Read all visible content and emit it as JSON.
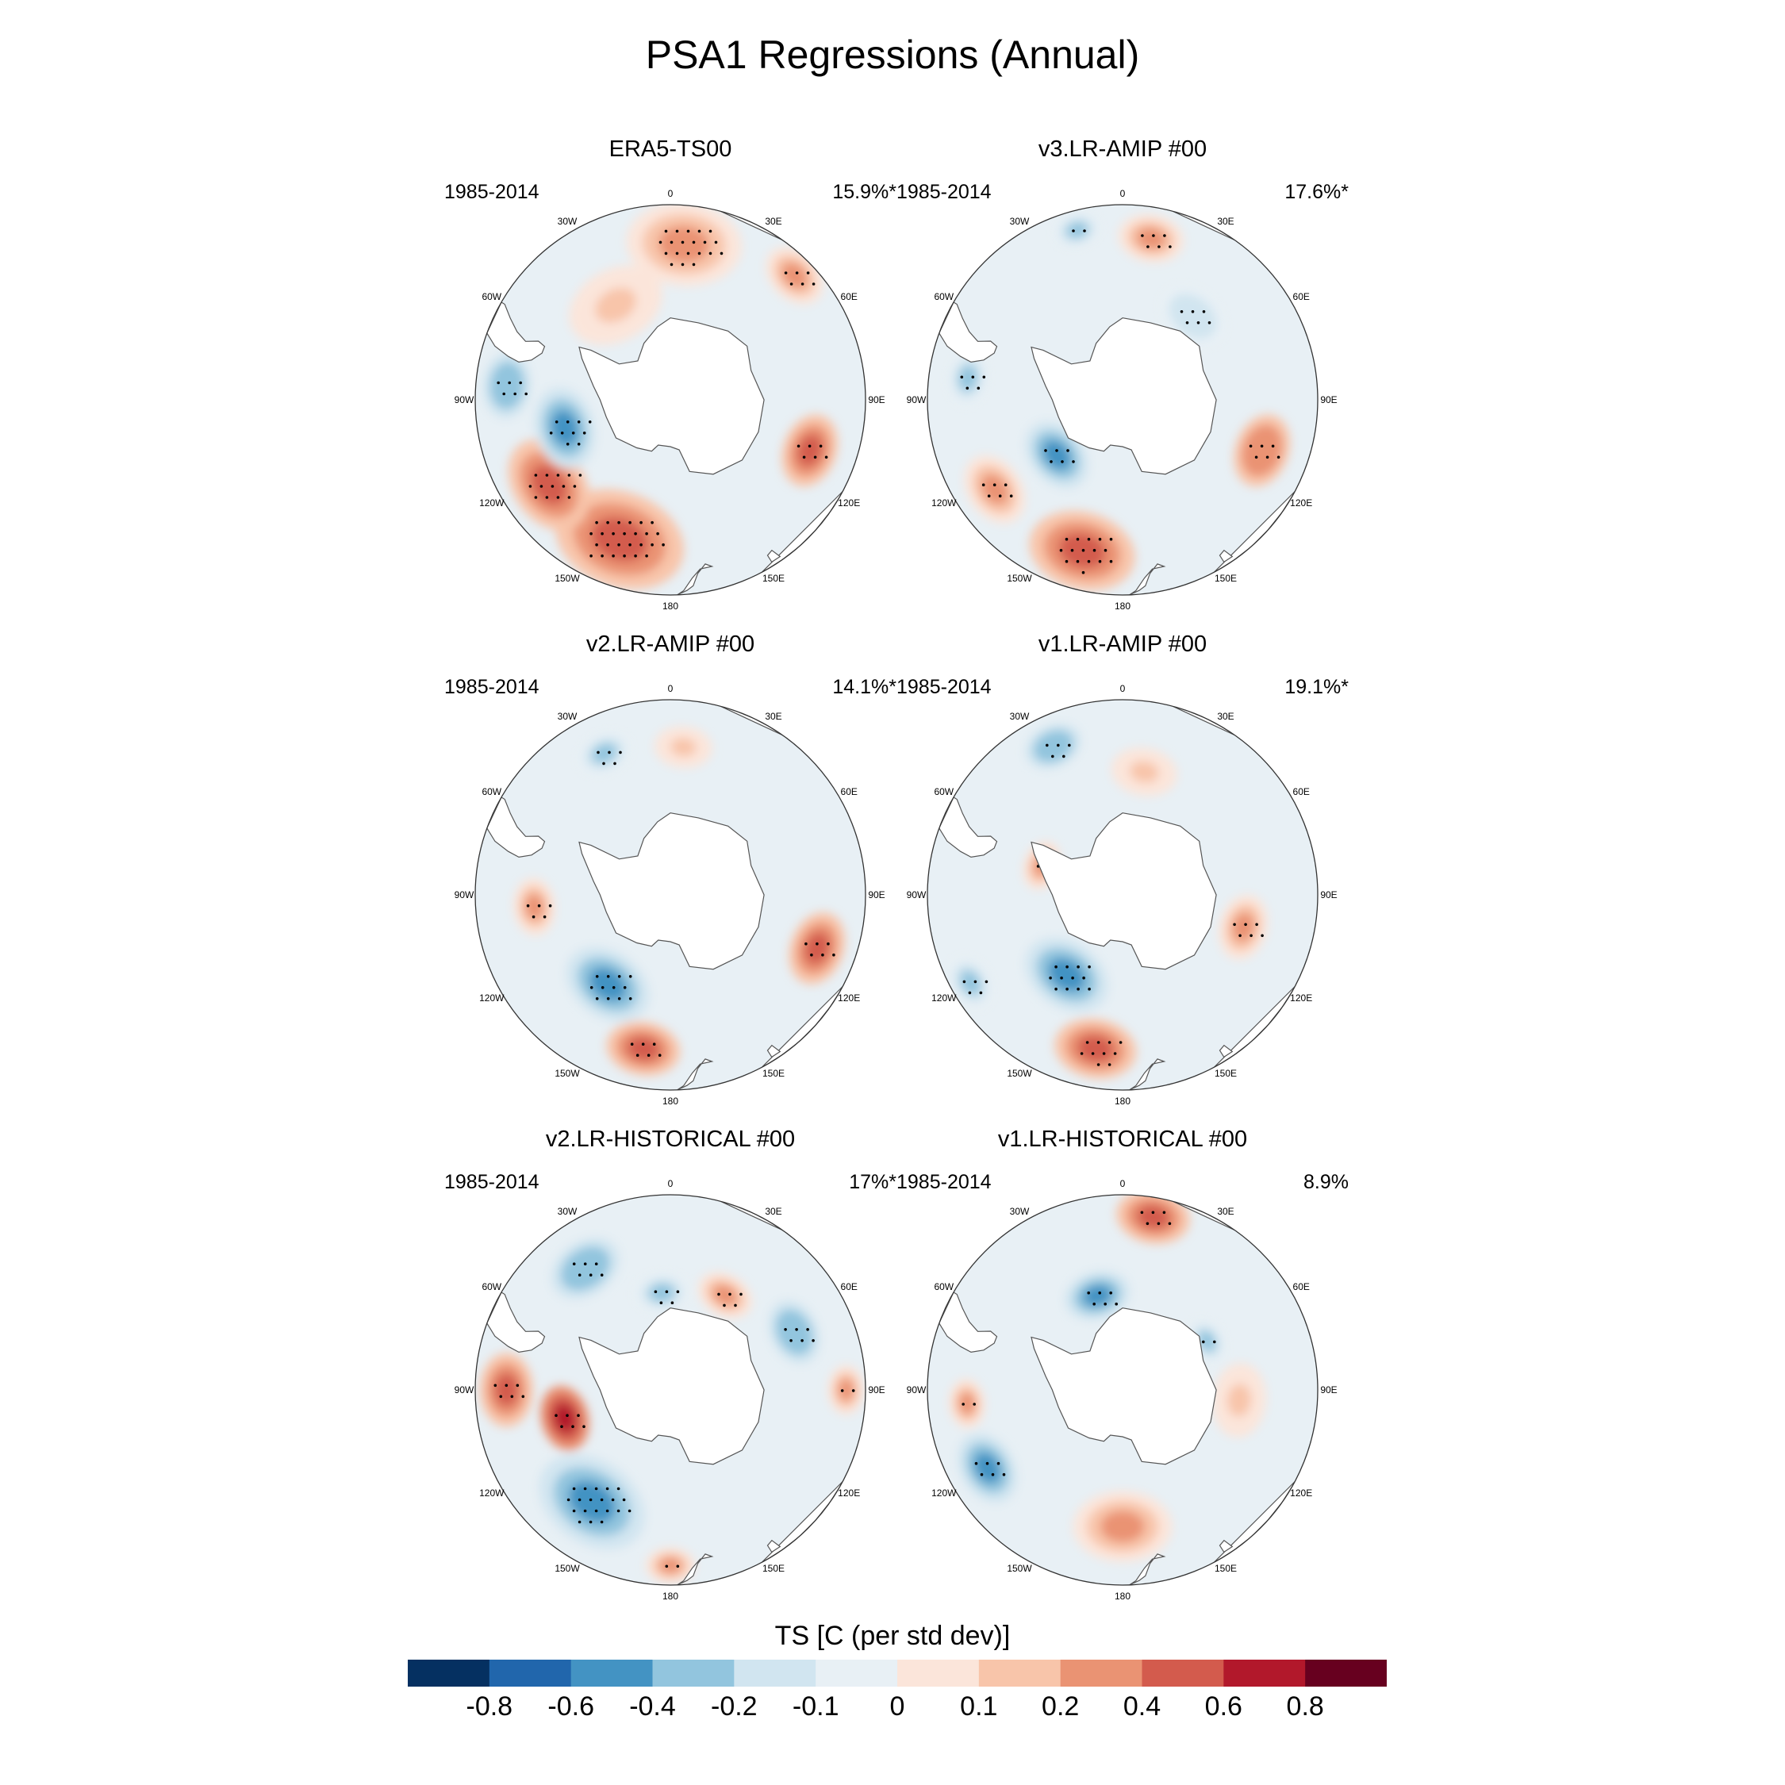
{
  "figure_title": "PSA1 Regressions (Annual)",
  "chart_data": {
    "type": "heatmap",
    "projection": "south-polar-stereographic",
    "variable_label": "TS [C (per std dev)]",
    "longitude_labels": [
      "0",
      "30E",
      "60E",
      "90E",
      "120E",
      "150E",
      "180",
      "150W",
      "120W",
      "90W",
      "60W",
      "30W"
    ],
    "colorbar": {
      "ticks": [
        "-0.8",
        "-0.6",
        "-0.4",
        "-0.2",
        "-0.1",
        "0",
        "0.1",
        "0.2",
        "0.4",
        "0.6",
        "0.8"
      ],
      "levels": [
        -0.8,
        -0.6,
        -0.4,
        -0.2,
        -0.1,
        0,
        0.1,
        0.2,
        0.4,
        0.6,
        0.8
      ],
      "colors": [
        "#053061",
        "#2166ac",
        "#4393c3",
        "#92c5de",
        "#d1e5f0",
        "#e8f0f5",
        "#fbe5da",
        "#f8c5aa",
        "#ea9373",
        "#d35b4d",
        "#b2182b",
        "#67001f"
      ]
    },
    "panels": [
      {
        "title": "ERA5-TS00",
        "period": "1985-2014",
        "variance": "15.9%*",
        "anomalies": [
          {
            "lon": 200,
            "lat": -52,
            "value": 0.45,
            "spread": 16,
            "significant": true
          },
          {
            "lon": 235,
            "lat": -52,
            "value": 0.4,
            "spread": 12,
            "significant": true
          },
          {
            "lon": 255,
            "lat": -62,
            "value": -0.45,
            "spread": 10,
            "significant": true
          },
          {
            "lon": 275,
            "lat": -48,
            "value": -0.35,
            "spread": 8,
            "significant": true
          },
          {
            "lon": 110,
            "lat": -52,
            "value": 0.4,
            "spread": 9,
            "significant": true
          },
          {
            "lon": 5,
            "lat": -50,
            "value": 0.22,
            "spread": 14,
            "significant": true
          },
          {
            "lon": 45,
            "lat": -45,
            "value": 0.2,
            "spread": 8,
            "significant": true
          },
          {
            "lon": 330,
            "lat": -62,
            "value": 0.15,
            "spread": 12,
            "significant": false
          }
        ]
      },
      {
        "title": "v3.LR-AMIP  #00",
        "period": "1985-2014",
        "variance": "17.6%*",
        "anomalies": [
          {
            "lon": 230,
            "lat": -68,
            "value": -0.5,
            "spread": 9,
            "significant": true
          },
          {
            "lon": 195,
            "lat": -50,
            "value": 0.45,
            "spread": 13,
            "significant": true
          },
          {
            "lon": 235,
            "lat": -50,
            "value": 0.3,
            "spread": 9,
            "significant": true
          },
          {
            "lon": 278,
            "lat": -50,
            "value": -0.3,
            "spread": 7,
            "significant": true
          },
          {
            "lon": 110,
            "lat": -52,
            "value": 0.38,
            "spread": 9,
            "significant": true
          },
          {
            "lon": 40,
            "lat": -62,
            "value": -0.2,
            "spread": 9,
            "significant": true
          },
          {
            "lon": 345,
            "lat": -45,
            "value": -0.3,
            "spread": 6,
            "significant": true
          },
          {
            "lon": 10,
            "lat": -48,
            "value": 0.2,
            "spread": 8,
            "significant": true
          }
        ]
      },
      {
        "title": "v2.LR-AMIP  #00",
        "period": "1985-2014",
        "variance": "14.1%*",
        "anomalies": [
          {
            "lon": 215,
            "lat": -62,
            "value": -0.5,
            "spread": 11,
            "significant": true
          },
          {
            "lon": 190,
            "lat": -50,
            "value": 0.42,
            "spread": 9,
            "significant": true
          },
          {
            "lon": 110,
            "lat": -50,
            "value": 0.45,
            "spread": 9,
            "significant": true
          },
          {
            "lon": 335,
            "lat": -50,
            "value": -0.3,
            "spread": 7,
            "significant": true
          },
          {
            "lon": 265,
            "lat": -55,
            "value": 0.3,
            "spread": 7,
            "significant": true
          },
          {
            "lon": 5,
            "lat": -52,
            "value": 0.15,
            "spread": 7,
            "significant": false
          }
        ]
      },
      {
        "title": "v1.LR-AMIP  #00",
        "period": "1985-2014",
        "variance": "19.1%*",
        "anomalies": [
          {
            "lon": 215,
            "lat": -65,
            "value": -0.45,
            "spread": 11,
            "significant": true
          },
          {
            "lon": 190,
            "lat": -50,
            "value": 0.4,
            "spread": 10,
            "significant": true
          },
          {
            "lon": 335,
            "lat": -48,
            "value": -0.4,
            "spread": 7,
            "significant": true
          },
          {
            "lon": 240,
            "lat": -45,
            "value": -0.3,
            "spread": 7,
            "significant": true
          },
          {
            "lon": 105,
            "lat": -58,
            "value": 0.3,
            "spread": 8,
            "significant": true
          },
          {
            "lon": 290,
            "lat": -68,
            "value": 0.25,
            "spread": 6,
            "significant": true
          },
          {
            "lon": 10,
            "lat": -58,
            "value": 0.15,
            "spread": 8,
            "significant": false
          }
        ]
      },
      {
        "title": "v2.LR-HISTORICAL  #00",
        "period": "1985-2014",
        "variance": "17%*",
        "anomalies": [
          {
            "lon": 215,
            "lat": -55,
            "value": -0.5,
            "spread": 14,
            "significant": true
          },
          {
            "lon": 255,
            "lat": -62,
            "value": 0.7,
            "spread": 8,
            "significant": true
          },
          {
            "lon": 270,
            "lat": -48,
            "value": 0.45,
            "spread": 9,
            "significant": true
          },
          {
            "lon": 325,
            "lat": -52,
            "value": -0.4,
            "spread": 9,
            "significant": true
          },
          {
            "lon": 355,
            "lat": -65,
            "value": -0.3,
            "spread": 7,
            "significant": true
          },
          {
            "lon": 65,
            "lat": -55,
            "value": -0.4,
            "spread": 8,
            "significant": true
          },
          {
            "lon": 90,
            "lat": -45,
            "value": 0.3,
            "spread": 6,
            "significant": true
          },
          {
            "lon": 30,
            "lat": -62,
            "value": 0.3,
            "spread": 7,
            "significant": true
          },
          {
            "lon": 180,
            "lat": -45,
            "value": 0.3,
            "spread": 6,
            "significant": true
          }
        ]
      },
      {
        "title": "v1.LR-HISTORICAL  #00",
        "period": "1985-2014",
        "variance": "8.9%",
        "anomalies": [
          {
            "lon": 10,
            "lat": -45,
            "value": 0.42,
            "spread": 9,
            "significant": true
          },
          {
            "lon": 345,
            "lat": -65,
            "value": -0.45,
            "spread": 8,
            "significant": true
          },
          {
            "lon": 240,
            "lat": -50,
            "value": -0.45,
            "spread": 9,
            "significant": true
          },
          {
            "lon": 265,
            "lat": -50,
            "value": 0.3,
            "spread": 6,
            "significant": true
          },
          {
            "lon": 60,
            "lat": -65,
            "value": -0.3,
            "spread": 6,
            "significant": true
          },
          {
            "lon": 180,
            "lat": -55,
            "value": 0.2,
            "spread": 12,
            "significant": false
          },
          {
            "lon": 95,
            "lat": -60,
            "value": 0.15,
            "spread": 9,
            "significant": false
          }
        ]
      }
    ]
  }
}
